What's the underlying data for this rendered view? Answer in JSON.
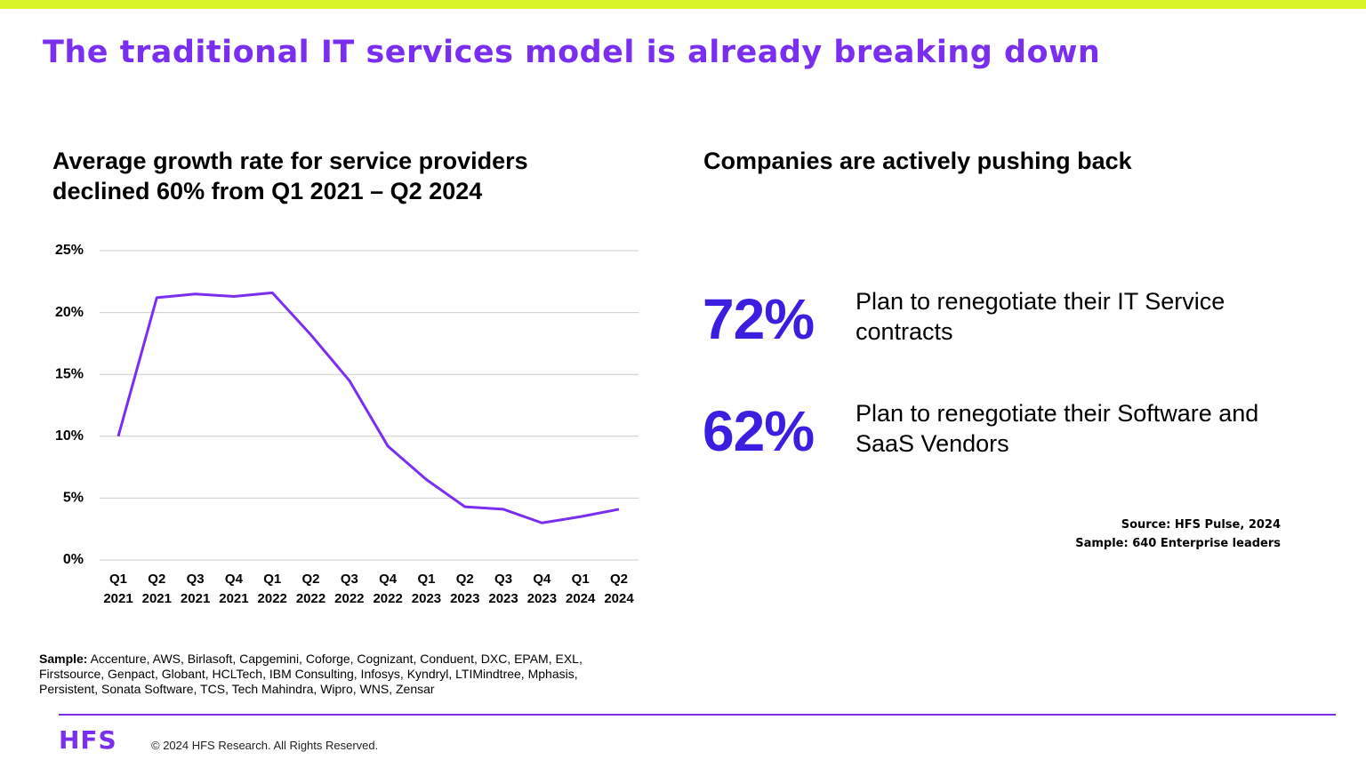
{
  "header": {
    "title": "The traditional IT services model is already breaking down"
  },
  "chart_data": {
    "type": "line",
    "title": "Average growth rate for service providers declined 60% from Q1 2021 – Q2 2024",
    "categories": [
      "Q1 2021",
      "Q2 2021",
      "Q3 2021",
      "Q4 2021",
      "Q1 2022",
      "Q2 2022",
      "Q3 2022",
      "Q4 2022",
      "Q1 2023",
      "Q2 2023",
      "Q3 2023",
      "Q4 2023",
      "Q1 2024",
      "Q2 2024"
    ],
    "values": [
      10,
      21.2,
      21.5,
      21.3,
      21.6,
      18.2,
      14.5,
      9.2,
      6.5,
      4.3,
      4.1,
      3.0,
      3.5,
      4.1
    ],
    "color": "#7a2ff0",
    "ylim": [
      0,
      25
    ],
    "yticks": [
      {
        "value": 0,
        "label": "0%"
      },
      {
        "value": 5,
        "label": "5%"
      },
      {
        "value": 10,
        "label": "10%"
      },
      {
        "value": 15,
        "label": "15%"
      },
      {
        "value": 20,
        "label": "20%"
      },
      {
        "value": 25,
        "label": "25%"
      }
    ],
    "grid": true
  },
  "stats": {
    "title": "Companies are actively pushing back",
    "items": [
      {
        "value": "72%",
        "text": "Plan to renegotiate their IT Service contracts"
      },
      {
        "value": "62%",
        "text": "Plan to renegotiate their Software and SaaS Vendors"
      }
    ]
  },
  "source": [
    "Source: HFS Pulse, 2024",
    "Sample: 640 Enterprise leaders"
  ],
  "sample": {
    "label": "Sample:",
    "text": "Accenture, AWS, Birlasoft, Capgemini, Coforge, Cognizant, Conduent, DXC, EPAM, EXL, Firstsource, Genpact, Globant, HCLTech, IBM Consulting, Infosys, Kyndryl, LTIMindtree, Mphasis, Persistent, Sonata Software, TCS, Tech Mahindra, Wipro, WNS, Zensar"
  },
  "footer": {
    "logo": "HFS",
    "copyright": "© 2024 HFS Research. All Rights Reserved."
  }
}
